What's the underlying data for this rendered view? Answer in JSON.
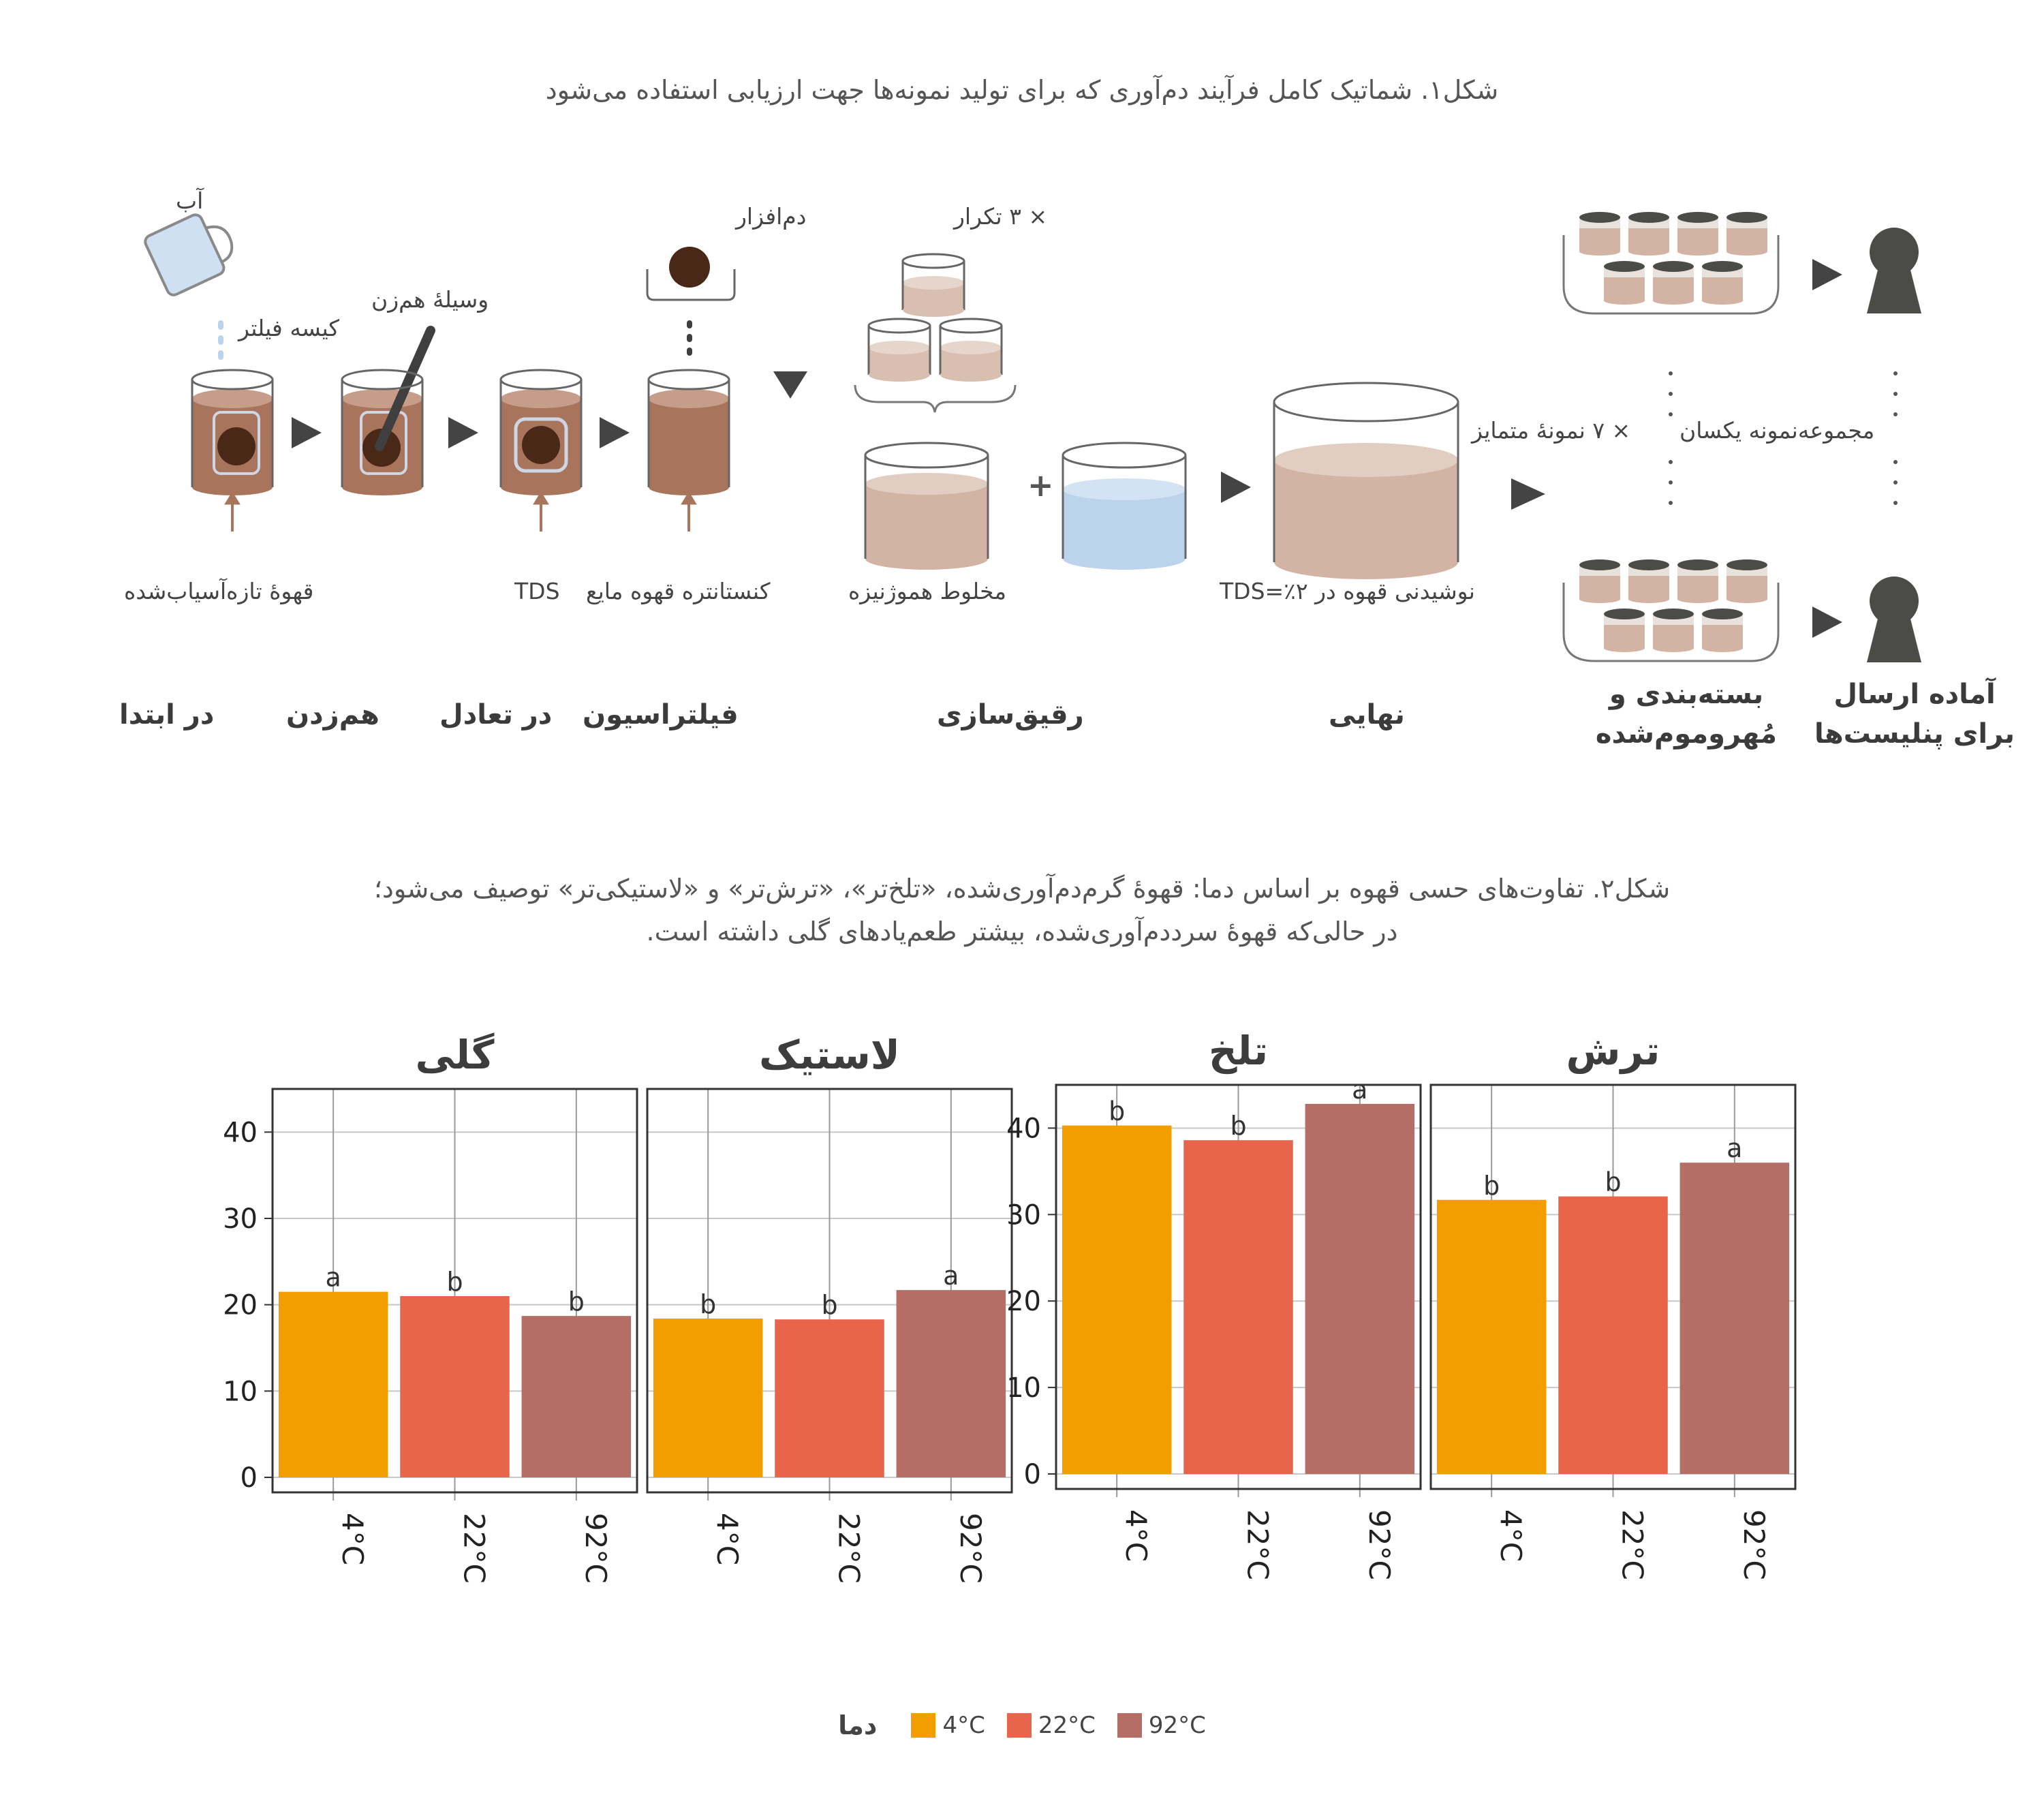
{
  "figure1": {
    "caption": "شکل۱. شماتیک کامل فرآیند دم‌آوری که برای تولید نمونه‌ها جهت ارزیابی استفاده می‌شود",
    "labels": {
      "water": "آب",
      "filter_bag": "کیسه فیلتر",
      "stirrer": "وسیلهٔ هم‌زن",
      "thermometer": "دم‌افزار",
      "repeat": "× ۳ تکرار",
      "fresh_ground": "قهوهٔ تازه‌آسیاب‌شده",
      "tds": "TDS",
      "concentrate": "کنستانتره قهوه مایع",
      "homogenized": "مخلوط هموژنیزه",
      "final_drink": "نوشیدنی قهوه در ۲٪=TDS",
      "seven_samples": "× ۷ نمونهٔ متمایز",
      "identical_set": "مجموعه‌نمونه یکسان"
    },
    "stages": {
      "start": "در ابتدا",
      "stirring": "هم‌زدن",
      "equilibrium": "در تعادل",
      "filtration": "فیلتراسیون",
      "dilution": "رقیق‌سازی",
      "final": "نهایی",
      "packaged_line1": "بسته‌بندی و",
      "packaged_line2": "مُهروموم‌شده",
      "ready_line1": "آماده ارسال",
      "ready_line2": "برای پنلیست‌ها"
    }
  },
  "figure2": {
    "caption_line1": "شکل۲. تفاوت‌های حسی قهوه بر اساس دما: قهوهٔ گرم‌دم‌آوری‌شده، «تلخ‌تر»، «ترش‌تر» و «لاستیکی‌تر» توصیف می‌شود؛",
    "caption_line2": "در حالی‌که قهوهٔ سرددم‌آوری‌شده، بیشتر طعم‌یادهای گلی داشته است."
  },
  "colors": {
    "c4": "#f29d00",
    "c22": "#e8644a",
    "c92": "#b56e66",
    "coffee": "#a8745c",
    "water": "#bcd3ec"
  },
  "chart_data": [
    {
      "type": "bar",
      "title": "گلی",
      "categories": [
        "4°C",
        "22°C",
        "92°C"
      ],
      "values": [
        21.5,
        21,
        18.7
      ],
      "letters": [
        "a",
        "b",
        "b"
      ],
      "yticks": [
        0,
        10,
        20,
        30,
        40
      ],
      "ylim": [
        0,
        45
      ],
      "grid": true
    },
    {
      "type": "bar",
      "title": "لاستیک",
      "categories": [
        "4°C",
        "22°C",
        "92°C"
      ],
      "values": [
        18.4,
        18.3,
        21.7
      ],
      "letters": [
        "b",
        "b",
        "a"
      ],
      "yticks": [
        0,
        10,
        20,
        30,
        40
      ],
      "ylim": [
        0,
        45
      ],
      "grid": true
    },
    {
      "type": "bar",
      "title": "تلخ",
      "categories": [
        "4°C",
        "22°C",
        "92°C"
      ],
      "values": [
        40.3,
        38.6,
        42.8
      ],
      "letters": [
        "b",
        "b",
        "a"
      ],
      "yticks": [
        0,
        10,
        20,
        30,
        40
      ],
      "ylim": [
        0,
        45
      ],
      "grid": true
    },
    {
      "type": "bar",
      "title": "ترش",
      "categories": [
        "4°C",
        "22°C",
        "92°C"
      ],
      "values": [
        31.7,
        32.1,
        36
      ],
      "letters": [
        "b",
        "b",
        "a"
      ],
      "yticks": [
        0,
        10,
        20,
        30,
        40
      ],
      "ylim": [
        0,
        45
      ],
      "grid": true
    }
  ],
  "legend": {
    "title": "دما",
    "items": [
      "4°C",
      "22°C",
      "92°C"
    ]
  }
}
